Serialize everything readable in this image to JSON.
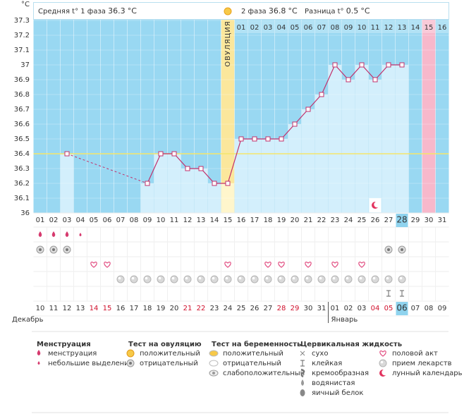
{
  "chart_data": {
    "type": "line",
    "y_unit": "°C",
    "categories": [
      "01",
      "02",
      "03",
      "04",
      "05",
      "06",
      "07",
      "08",
      "09",
      "10",
      "11",
      "12",
      "13",
      "14",
      "15",
      "16",
      "17",
      "18",
      "19",
      "20",
      "21",
      "22",
      "23",
      "24",
      "25",
      "26",
      "27",
      "28",
      "29",
      "30",
      "31"
    ],
    "dates": [
      "10",
      "11",
      "12",
      "13",
      "14",
      "15",
      "16",
      "17",
      "18",
      "19",
      "20",
      "21",
      "22",
      "23",
      "24",
      "25",
      "26",
      "27",
      "28",
      "29",
      "30",
      "31",
      "01",
      "02",
      "03",
      "04",
      "05",
      "06",
      "07",
      "08",
      "09"
    ],
    "red_dates": [
      "14",
      "15",
      "21",
      "22",
      "28",
      "29",
      "04",
      "05"
    ],
    "today_day": "28",
    "today_date": "06",
    "months": [
      {
        "label": "Декабрь",
        "from": "10"
      },
      {
        "label": "Январь",
        "from": "01"
      }
    ],
    "series": [
      {
        "name": "t°",
        "color": "#c2306b",
        "values": [
          null,
          null,
          36.4,
          null,
          null,
          null,
          null,
          null,
          36.2,
          36.4,
          36.4,
          36.3,
          36.3,
          36.2,
          36.2,
          36.5,
          36.5,
          36.5,
          36.5,
          36.6,
          36.7,
          36.8,
          37,
          36.9,
          37,
          36.9,
          37,
          37,
          null,
          null,
          null
        ]
      }
    ],
    "coverline": 36.4,
    "ylim": [
      36,
      37.4
    ],
    "yticks": [
      36,
      36.1,
      36.2,
      36.3,
      36.4,
      36.5,
      36.6,
      36.7,
      36.8,
      36.9,
      37,
      37.1,
      37.2,
      37.3
    ],
    "ovulation": {
      "label": "ОВУЛЯЦИЯ",
      "day": "15"
    },
    "expected_period_day": "30",
    "phase2": {
      "from": "16",
      "days": [
        "01",
        "02",
        "03",
        "04",
        "05",
        "06",
        "07",
        "08",
        "09",
        "10",
        "11",
        "12",
        "13",
        "14",
        "15",
        "16"
      ]
    }
  },
  "header": {
    "phase1_label": "Средняя t° 1 фаза",
    "phase1_value": 36.3,
    "phase2_label": "2 фаза",
    "phase2_value": 36.8,
    "diff_label": "Разница t°",
    "diff_value": 0.5
  },
  "legend": [
    {
      "title": "Менструация",
      "items": [
        {
          "label": "менструация",
          "days": [
            "01",
            "02",
            "03"
          ]
        },
        {
          "label": "небольшие выделения",
          "days": [
            "04"
          ]
        }
      ]
    },
    {
      "title": "Тест на овуляцию",
      "items": [
        {
          "label": "положительный"
        },
        {
          "label": "отрицательный",
          "days": [
            "01",
            "02",
            "03",
            "27",
            "28"
          ]
        }
      ]
    },
    {
      "title": "Тест на беременность",
      "items": [
        {
          "label": "положительный"
        },
        {
          "label": "отрицательный"
        },
        {
          "label": "слабоположительный"
        }
      ]
    },
    {
      "title": "Цервикальная жидкость",
      "items": [
        {
          "label": "сухо"
        },
        {
          "label": "клейкая",
          "days": [
            "27",
            "28"
          ]
        },
        {
          "label": "кремообразная"
        },
        {
          "label": "водянистая"
        },
        {
          "label": "яичный белок"
        }
      ]
    },
    {
      "items": [
        {
          "label": "половой акт",
          "days": [
            "05",
            "06",
            "15",
            "18",
            "19",
            "21",
            "23",
            "25"
          ]
        },
        {
          "label": "прием лекарств",
          "days": [
            "07",
            "08",
            "09",
            "10",
            "11",
            "12",
            "13",
            "14",
            "15",
            "16",
            "17",
            "18",
            "19",
            "20",
            "21",
            "22",
            "23",
            "24",
            "25",
            "26",
            "27",
            "28"
          ]
        },
        {
          "label": "лунный календарь",
          "days": [
            "26"
          ]
        }
      ]
    }
  ]
}
